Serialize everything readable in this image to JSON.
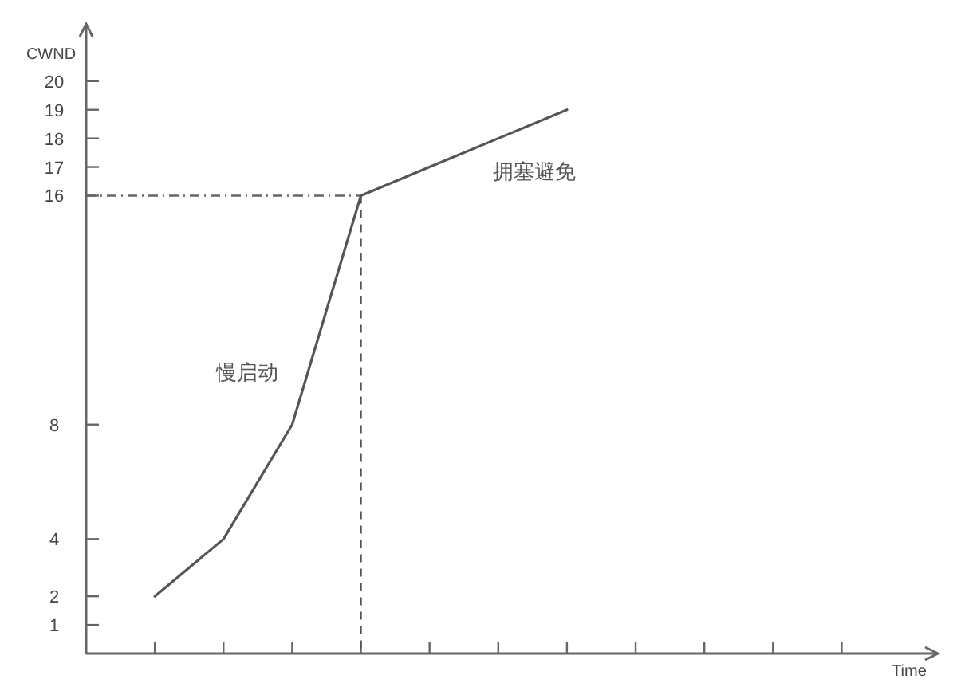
{
  "chart_data": {
    "type": "line",
    "xlabel": "Time",
    "ylabel": "CWND",
    "categories": [
      null,
      null,
      null,
      null,
      null,
      null,
      null,
      null,
      null,
      null,
      null
    ],
    "series": [
      {
        "color": "#555555",
        "values": [
          2,
          4,
          8,
          16,
          17,
          18,
          19,
          null,
          null,
          null,
          null
        ]
      }
    ],
    "ylim": [
      0,
      22
    ],
    "yticks": [
      1,
      2,
      4,
      8,
      16,
      17,
      18,
      19,
      20
    ],
    "ref_lines": [
      {
        "axis": "y",
        "value": 16,
        "color": "#666666",
        "line_style": "dashdot"
      }
    ],
    "annotations": [
      "慢启动",
      "拥塞避免"
    ],
    "line_style": "solid"
  }
}
